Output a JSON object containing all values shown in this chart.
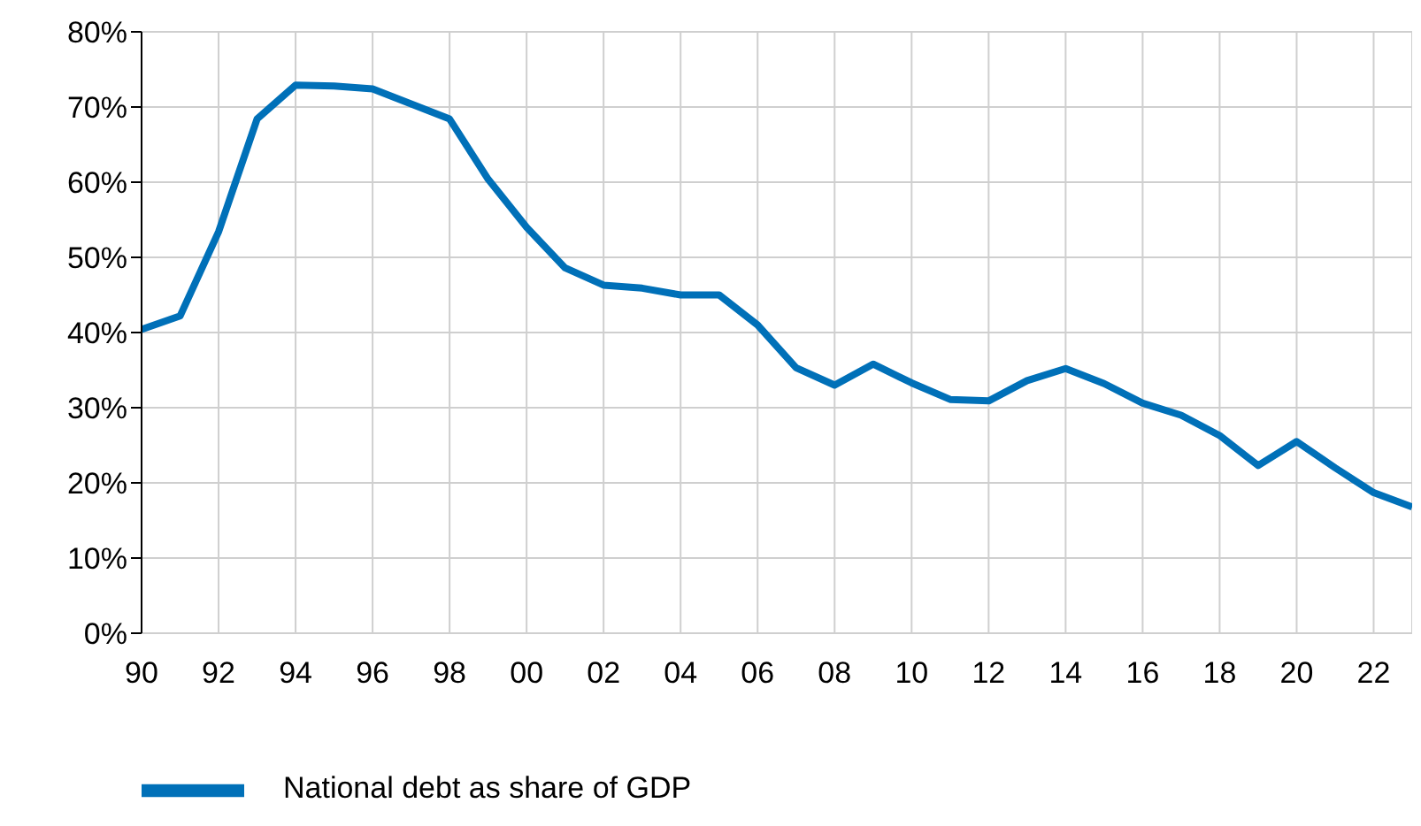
{
  "chart_data": {
    "type": "line",
    "x": [
      1990,
      1991,
      1992,
      1993,
      1994,
      1995,
      1996,
      1997,
      1998,
      1999,
      2000,
      2001,
      2002,
      2003,
      2004,
      2005,
      2006,
      2007,
      2008,
      2009,
      2010,
      2011,
      2012,
      2013,
      2014,
      2015,
      2016,
      2017,
      2018,
      2019,
      2020,
      2021,
      2022,
      2023
    ],
    "series": [
      {
        "name": "National debt as share of GDP",
        "color": "#0070b8",
        "values": [
          40.4,
          42.2,
          53.4,
          68.4,
          72.9,
          72.8,
          72.4,
          70.4,
          68.4,
          60.4,
          54.0,
          48.6,
          46.3,
          45.9,
          45.0,
          45.0,
          41.0,
          35.3,
          33.0,
          35.8,
          33.3,
          31.1,
          30.9,
          33.6,
          35.2,
          33.2,
          30.6,
          29.0,
          26.3,
          22.3,
          25.5,
          22.0,
          18.7,
          16.8
        ]
      }
    ],
    "xlim": [
      1990,
      2023
    ],
    "xticks": [
      {
        "value": 1990,
        "label": "90"
      },
      {
        "value": 1992,
        "label": "92"
      },
      {
        "value": 1994,
        "label": "94"
      },
      {
        "value": 1996,
        "label": "96"
      },
      {
        "value": 1998,
        "label": "98"
      },
      {
        "value": 2000,
        "label": "00"
      },
      {
        "value": 2002,
        "label": "02"
      },
      {
        "value": 2004,
        "label": "04"
      },
      {
        "value": 2006,
        "label": "06"
      },
      {
        "value": 2008,
        "label": "08"
      },
      {
        "value": 2010,
        "label": "10"
      },
      {
        "value": 2012,
        "label": "12"
      },
      {
        "value": 2014,
        "label": "14"
      },
      {
        "value": 2016,
        "label": "16"
      },
      {
        "value": 2018,
        "label": "18"
      },
      {
        "value": 2020,
        "label": "20"
      },
      {
        "value": 2022,
        "label": "22"
      }
    ],
    "ylim": [
      0,
      80
    ],
    "yticks": [
      {
        "value": 0,
        "label": "0%"
      },
      {
        "value": 10,
        "label": "10%"
      },
      {
        "value": 20,
        "label": "20%"
      },
      {
        "value": 30,
        "label": "30%"
      },
      {
        "value": 40,
        "label": "40%"
      },
      {
        "value": 50,
        "label": "50%"
      },
      {
        "value": 60,
        "label": "60%"
      },
      {
        "value": 70,
        "label": "70%"
      },
      {
        "value": 80,
        "label": "80%"
      }
    ],
    "grid": true,
    "legend": "bottom left",
    "marker": "none",
    "line_style": "solid"
  }
}
